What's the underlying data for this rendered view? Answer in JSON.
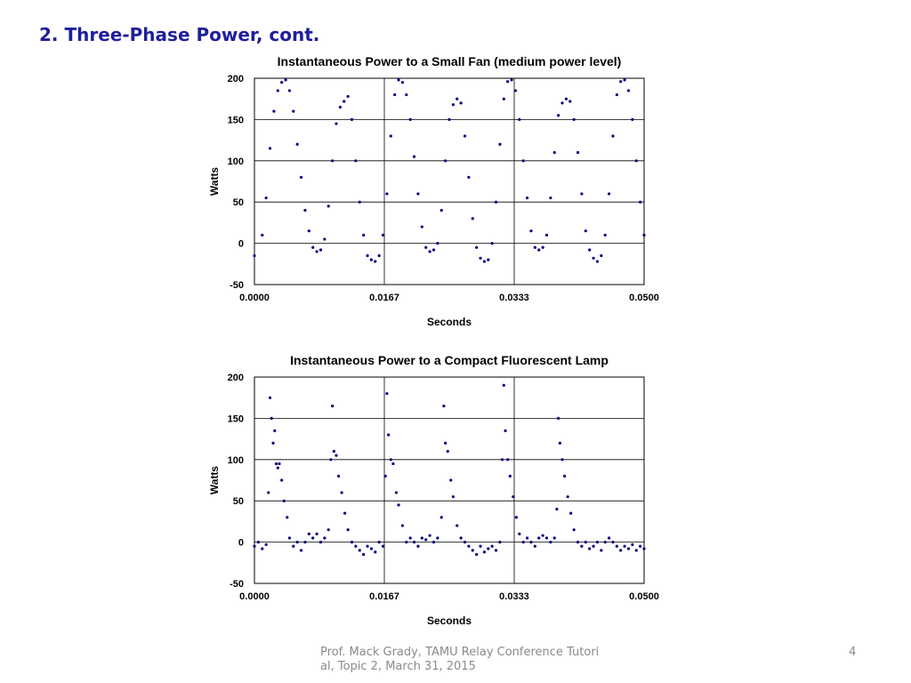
{
  "slide": {
    "title": "2. Three-Phase Power, cont.",
    "footer": "Prof. Mack Grady, TAMU Relay Conference Tutorial, Topic 2, March 31, 2015",
    "page_number": "4"
  },
  "colors": {
    "title": "#1f1f9a",
    "points": "#000080",
    "grid": "#000000",
    "footer": "#8a8a8a"
  },
  "chart_data": [
    {
      "type": "scatter",
      "title": "Instantaneous Power to a Small Fan (medium power level)",
      "xlabel": "Seconds",
      "ylabel": "Watts",
      "xlim": [
        0,
        0.05
      ],
      "ylim": [
        -50,
        200
      ],
      "xticks": [
        0,
        0.016667,
        0.033333,
        0.05
      ],
      "xtick_labels": [
        "0.0000",
        "0.0167",
        "0.0333",
        "0.0500"
      ],
      "yticks": [
        -50,
        0,
        50,
        100,
        150,
        200
      ],
      "ytick_labels": [
        "-50",
        "0",
        "50",
        "100",
        "150",
        "200"
      ],
      "grid": true,
      "marker_color": "#000080",
      "series": [
        {
          "values": [
            [
              0.0,
              -15
            ],
            [
              0.001,
              10
            ],
            [
              0.0015,
              55
            ],
            [
              0.002,
              115
            ],
            [
              0.0025,
              160
            ],
            [
              0.003,
              185
            ],
            [
              0.0035,
              195
            ],
            [
              0.004,
              198
            ],
            [
              0.0045,
              185
            ],
            [
              0.005,
              160
            ],
            [
              0.0055,
              120
            ],
            [
              0.006,
              80
            ],
            [
              0.0065,
              40
            ],
            [
              0.007,
              15
            ],
            [
              0.0075,
              -5
            ],
            [
              0.008,
              -10
            ],
            [
              0.0085,
              -8
            ],
            [
              0.009,
              5
            ],
            [
              0.0095,
              45
            ],
            [
              0.01,
              100
            ],
            [
              0.0105,
              145
            ],
            [
              0.011,
              165
            ],
            [
              0.0115,
              172
            ],
            [
              0.012,
              178
            ],
            [
              0.0125,
              150
            ],
            [
              0.013,
              100
            ],
            [
              0.0135,
              50
            ],
            [
              0.014,
              10
            ],
            [
              0.0145,
              -15
            ],
            [
              0.015,
              -20
            ],
            [
              0.0155,
              -22
            ],
            [
              0.016,
              -15
            ],
            [
              0.0165,
              10
            ],
            [
              0.017,
              60
            ],
            [
              0.0175,
              130
            ],
            [
              0.018,
              180
            ],
            [
              0.0185,
              198
            ],
            [
              0.019,
              195
            ],
            [
              0.0195,
              180
            ],
            [
              0.02,
              150
            ],
            [
              0.0205,
              105
            ],
            [
              0.021,
              60
            ],
            [
              0.0215,
              20
            ],
            [
              0.022,
              -5
            ],
            [
              0.0225,
              -10
            ],
            [
              0.023,
              -8
            ],
            [
              0.0235,
              0
            ],
            [
              0.024,
              40
            ],
            [
              0.0245,
              100
            ],
            [
              0.025,
              150
            ],
            [
              0.0255,
              168
            ],
            [
              0.026,
              175
            ],
            [
              0.0265,
              170
            ],
            [
              0.027,
              130
            ],
            [
              0.0275,
              80
            ],
            [
              0.028,
              30
            ],
            [
              0.0285,
              -5
            ],
            [
              0.029,
              -18
            ],
            [
              0.0295,
              -22
            ],
            [
              0.03,
              -20
            ],
            [
              0.0305,
              0
            ],
            [
              0.031,
              50
            ],
            [
              0.0315,
              120
            ],
            [
              0.032,
              175
            ],
            [
              0.0325,
              196
            ],
            [
              0.033,
              198
            ],
            [
              0.0335,
              185
            ],
            [
              0.034,
              150
            ],
            [
              0.0345,
              100
            ],
            [
              0.035,
              55
            ],
            [
              0.0355,
              15
            ],
            [
              0.036,
              -5
            ],
            [
              0.0365,
              -8
            ],
            [
              0.037,
              -5
            ],
            [
              0.0375,
              10
            ],
            [
              0.038,
              55
            ],
            [
              0.0385,
              110
            ],
            [
              0.039,
              155
            ],
            [
              0.0395,
              170
            ],
            [
              0.04,
              175
            ],
            [
              0.0405,
              172
            ],
            [
              0.041,
              150
            ],
            [
              0.0415,
              110
            ],
            [
              0.042,
              60
            ],
            [
              0.0425,
              15
            ],
            [
              0.043,
              -8
            ],
            [
              0.0435,
              -18
            ],
            [
              0.044,
              -22
            ],
            [
              0.0445,
              -15
            ],
            [
              0.045,
              10
            ],
            [
              0.0455,
              60
            ],
            [
              0.046,
              130
            ],
            [
              0.0465,
              180
            ],
            [
              0.047,
              196
            ],
            [
              0.0475,
              198
            ],
            [
              0.048,
              185
            ],
            [
              0.0485,
              150
            ],
            [
              0.049,
              100
            ],
            [
              0.0495,
              50
            ],
            [
              0.05,
              10
            ]
          ]
        }
      ]
    },
    {
      "type": "scatter",
      "title": "Instantaneous Power to a Compact Fluorescent Lamp",
      "xlabel": "Seconds",
      "ylabel": "Watts",
      "xlim": [
        0,
        0.05
      ],
      "ylim": [
        -50,
        200
      ],
      "xticks": [
        0,
        0.016667,
        0.033333,
        0.05
      ],
      "xtick_labels": [
        "0.0000",
        "0.0167",
        "0.0333",
        "0.0500"
      ],
      "yticks": [
        -50,
        0,
        50,
        100,
        150,
        200
      ],
      "ytick_labels": [
        "-50",
        "0",
        "50",
        "100",
        "150",
        "200"
      ],
      "grid": true,
      "marker_color": "#000080",
      "series": [
        {
          "values": [
            [
              0.0,
              -5
            ],
            [
              0.0005,
              0
            ],
            [
              0.001,
              -8
            ],
            [
              0.0015,
              -3
            ],
            [
              0.0018,
              60
            ],
            [
              0.002,
              175
            ],
            [
              0.0022,
              150
            ],
            [
              0.0024,
              120
            ],
            [
              0.0026,
              135
            ],
            [
              0.0028,
              95
            ],
            [
              0.003,
              90
            ],
            [
              0.0032,
              95
            ],
            [
              0.0035,
              75
            ],
            [
              0.0038,
              50
            ],
            [
              0.0042,
              30
            ],
            [
              0.0045,
              5
            ],
            [
              0.005,
              -5
            ],
            [
              0.0055,
              0
            ],
            [
              0.006,
              -10
            ],
            [
              0.0065,
              0
            ],
            [
              0.007,
              10
            ],
            [
              0.0075,
              5
            ],
            [
              0.008,
              10
            ],
            [
              0.0085,
              0
            ],
            [
              0.009,
              5
            ],
            [
              0.0095,
              15
            ],
            [
              0.0098,
              100
            ],
            [
              0.01,
              165
            ],
            [
              0.0102,
              110
            ],
            [
              0.0105,
              105
            ],
            [
              0.0108,
              80
            ],
            [
              0.0112,
              60
            ],
            [
              0.0116,
              35
            ],
            [
              0.012,
              15
            ],
            [
              0.0125,
              0
            ],
            [
              0.013,
              -5
            ],
            [
              0.0135,
              -10
            ],
            [
              0.014,
              -15
            ],
            [
              0.0145,
              -5
            ],
            [
              0.015,
              -8
            ],
            [
              0.0155,
              -12
            ],
            [
              0.016,
              0
            ],
            [
              0.0165,
              -5
            ],
            [
              0.0168,
              80
            ],
            [
              0.017,
              180
            ],
            [
              0.0172,
              130
            ],
            [
              0.0175,
              100
            ],
            [
              0.0178,
              95
            ],
            [
              0.0182,
              60
            ],
            [
              0.0185,
              45
            ],
            [
              0.019,
              20
            ],
            [
              0.0195,
              0
            ],
            [
              0.02,
              5
            ],
            [
              0.0205,
              0
            ],
            [
              0.021,
              -5
            ],
            [
              0.0215,
              5
            ],
            [
              0.022,
              3
            ],
            [
              0.0225,
              8
            ],
            [
              0.023,
              0
            ],
            [
              0.0235,
              5
            ],
            [
              0.024,
              30
            ],
            [
              0.0243,
              165
            ],
            [
              0.0245,
              120
            ],
            [
              0.0248,
              110
            ],
            [
              0.0252,
              75
            ],
            [
              0.0255,
              55
            ],
            [
              0.026,
              20
            ],
            [
              0.0265,
              5
            ],
            [
              0.027,
              0
            ],
            [
              0.0275,
              -5
            ],
            [
              0.028,
              -10
            ],
            [
              0.0285,
              -15
            ],
            [
              0.029,
              -5
            ],
            [
              0.0295,
              -12
            ],
            [
              0.03,
              -8
            ],
            [
              0.0305,
              -5
            ],
            [
              0.031,
              -10
            ],
            [
              0.0315,
              0
            ],
            [
              0.0318,
              100
            ],
            [
              0.032,
              190
            ],
            [
              0.0322,
              135
            ],
            [
              0.0325,
              100
            ],
            [
              0.0328,
              80
            ],
            [
              0.0332,
              55
            ],
            [
              0.0336,
              30
            ],
            [
              0.034,
              10
            ],
            [
              0.0345,
              0
            ],
            [
              0.035,
              5
            ],
            [
              0.0355,
              0
            ],
            [
              0.036,
              -5
            ],
            [
              0.0365,
              5
            ],
            [
              0.037,
              8
            ],
            [
              0.0375,
              5
            ],
            [
              0.038,
              0
            ],
            [
              0.0385,
              5
            ],
            [
              0.0388,
              40
            ],
            [
              0.039,
              150
            ],
            [
              0.0392,
              120
            ],
            [
              0.0395,
              100
            ],
            [
              0.0398,
              80
            ],
            [
              0.0402,
              55
            ],
            [
              0.0406,
              35
            ],
            [
              0.041,
              15
            ],
            [
              0.0415,
              0
            ],
            [
              0.042,
              -5
            ],
            [
              0.0425,
              0
            ],
            [
              0.043,
              -8
            ],
            [
              0.0435,
              -5
            ],
            [
              0.044,
              0
            ],
            [
              0.0445,
              -10
            ],
            [
              0.045,
              0
            ],
            [
              0.0455,
              5
            ],
            [
              0.046,
              0
            ],
            [
              0.0465,
              -5
            ],
            [
              0.047,
              -10
            ],
            [
              0.0475,
              -5
            ],
            [
              0.048,
              -8
            ],
            [
              0.0485,
              -3
            ],
            [
              0.049,
              -10
            ],
            [
              0.0495,
              -5
            ],
            [
              0.05,
              -8
            ]
          ]
        }
      ]
    }
  ]
}
